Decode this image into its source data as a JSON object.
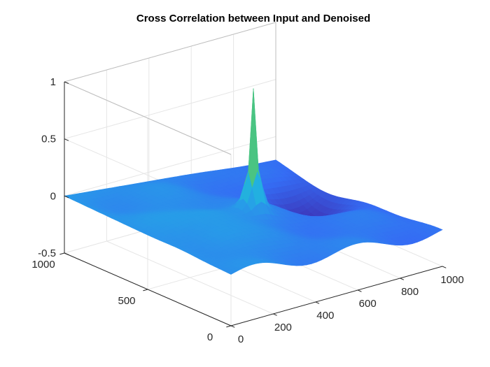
{
  "chart_data": {
    "type": "surface",
    "title": "Cross Correlation between Input and Denoised",
    "x_axis": {
      "ticks": [
        "0",
        "200",
        "400",
        "600",
        "800",
        "1000"
      ],
      "range": [
        0,
        1000
      ]
    },
    "y_axis": {
      "ticks": [
        "0",
        "500",
        "1000"
      ],
      "range": [
        0,
        1000
      ]
    },
    "z_axis": {
      "ticks": [
        "-0.5",
        "0",
        "0.5",
        "1"
      ],
      "range": [
        -0.5,
        1
      ]
    },
    "grid": true,
    "colormap": "parula",
    "peak": {
      "x": 500,
      "y": 500,
      "z": 1.0
    },
    "corner_values": {
      "x0_y0": -0.05,
      "x1000_y0": -0.2,
      "x0_y1000": 0.0,
      "x1000_y1000": -0.2
    },
    "minimum": {
      "x": 850,
      "y": 650,
      "z": -0.35
    },
    "colors": {
      "low": "#3e26a8",
      "mid": "#2ab0c3",
      "high": "#f9fb0e"
    }
  }
}
